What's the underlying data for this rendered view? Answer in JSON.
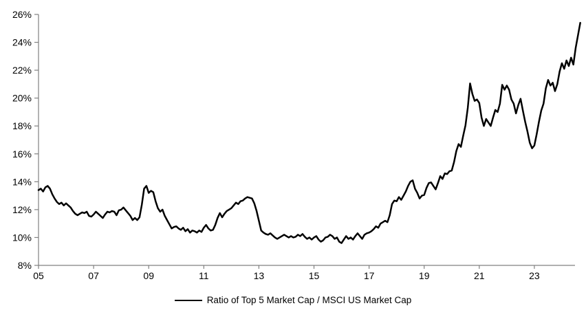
{
  "chart_data": {
    "type": "line",
    "title": "",
    "legend_position": "bottom-center",
    "grid": false,
    "line_color": "#000000",
    "axis_color": "#808080",
    "label_color": "#000000",
    "ylim": [
      8,
      26
    ],
    "ytick_step": 2,
    "ytick_labels": [
      "8%",
      "10%",
      "12%",
      "14%",
      "16%",
      "18%",
      "20%",
      "22%",
      "24%",
      "26%"
    ],
    "xlim": [
      2005,
      2024.7
    ],
    "xtick_years": [
      2005,
      2007,
      2009,
      2011,
      2013,
      2015,
      2017,
      2019,
      2021,
      2023
    ],
    "xtick_labels": [
      "05",
      "07",
      "09",
      "11",
      "13",
      "15",
      "17",
      "19",
      "21",
      "23"
    ],
    "x_start_year": 2005,
    "points_per_year": 12,
    "series": [
      {
        "name": "Ratio of Top 5 Market Cap / MSCI US Market Cap",
        "values": [
          13.4,
          13.5,
          13.3,
          13.6,
          13.7,
          13.5,
          13.1,
          12.8,
          12.55,
          12.4,
          12.5,
          12.3,
          12.45,
          12.3,
          12.15,
          11.9,
          11.7,
          11.6,
          11.7,
          11.8,
          11.75,
          11.85,
          11.55,
          11.5,
          11.65,
          11.85,
          11.7,
          11.55,
          11.4,
          11.65,
          11.85,
          11.8,
          11.9,
          11.85,
          11.6,
          11.95,
          12.0,
          12.15,
          11.95,
          11.75,
          11.55,
          11.25,
          11.4,
          11.25,
          11.45,
          12.35,
          13.5,
          13.7,
          13.2,
          13.35,
          13.25,
          12.6,
          12.1,
          11.85,
          12.0,
          11.55,
          11.25,
          10.95,
          10.65,
          10.75,
          10.8,
          10.65,
          10.55,
          10.7,
          10.45,
          10.6,
          10.35,
          10.5,
          10.45,
          10.35,
          10.5,
          10.4,
          10.7,
          10.9,
          10.65,
          10.5,
          10.55,
          10.9,
          11.4,
          11.75,
          11.45,
          11.7,
          11.9,
          12.0,
          12.1,
          12.3,
          12.5,
          12.4,
          12.6,
          12.65,
          12.8,
          12.9,
          12.85,
          12.8,
          12.45,
          11.9,
          11.2,
          10.5,
          10.35,
          10.25,
          10.2,
          10.3,
          10.15,
          10.0,
          9.9,
          10.0,
          10.1,
          10.2,
          10.1,
          10.0,
          10.1,
          10.0,
          10.05,
          10.2,
          10.1,
          10.25,
          10.05,
          9.9,
          10.0,
          9.85,
          10.0,
          10.1,
          9.85,
          9.7,
          9.8,
          10.0,
          10.05,
          10.2,
          10.1,
          9.9,
          10.0,
          9.7,
          9.6,
          9.85,
          10.1,
          9.9,
          10.0,
          9.85,
          10.1,
          10.3,
          10.1,
          9.9,
          10.2,
          10.3,
          10.35,
          10.45,
          10.6,
          10.8,
          10.7,
          11.0,
          11.1,
          11.2,
          11.1,
          11.6,
          12.4,
          12.65,
          12.6,
          12.9,
          12.7,
          13.0,
          13.3,
          13.7,
          14.0,
          14.1,
          13.5,
          13.2,
          12.8,
          13.0,
          13.05,
          13.55,
          13.9,
          13.95,
          13.7,
          13.45,
          13.9,
          14.4,
          14.2,
          14.6,
          14.55,
          14.75,
          14.8,
          15.4,
          16.2,
          16.7,
          16.5,
          17.3,
          18.05,
          19.3,
          21.05,
          20.3,
          19.8,
          19.9,
          19.65,
          18.6,
          18.0,
          18.5,
          18.25,
          18.0,
          18.6,
          19.15,
          19.0,
          19.6,
          20.95,
          20.6,
          20.9,
          20.6,
          19.9,
          19.6,
          18.9,
          19.5,
          19.95,
          19.1,
          18.3,
          17.6,
          16.8,
          16.4,
          16.6,
          17.4,
          18.3,
          19.1,
          19.6,
          20.7,
          21.3,
          20.9,
          21.1,
          20.5,
          21.0,
          21.9,
          22.5,
          22.1,
          22.7,
          22.3,
          22.9,
          22.4,
          23.6,
          24.5,
          25.4
        ]
      }
    ]
  },
  "legend": {
    "label": "Ratio of Top 5 Market Cap / MSCI US Market Cap"
  }
}
